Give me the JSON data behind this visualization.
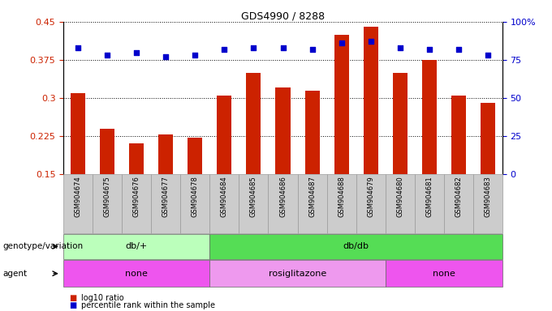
{
  "title": "GDS4990 / 8288",
  "samples": [
    "GSM904674",
    "GSM904675",
    "GSM904676",
    "GSM904677",
    "GSM904678",
    "GSM904684",
    "GSM904685",
    "GSM904686",
    "GSM904687",
    "GSM904688",
    "GSM904679",
    "GSM904680",
    "GSM904681",
    "GSM904682",
    "GSM904683"
  ],
  "log10_ratio": [
    0.31,
    0.24,
    0.21,
    0.228,
    0.222,
    0.305,
    0.35,
    0.32,
    0.315,
    0.425,
    0.44,
    0.35,
    0.375,
    0.305,
    0.29
  ],
  "percentile": [
    83,
    78,
    80,
    77,
    78,
    82,
    83,
    83,
    82,
    86,
    87,
    83,
    82,
    82,
    78
  ],
  "bar_color": "#cc2200",
  "dot_color": "#0000cc",
  "ylim_left": [
    0.15,
    0.45
  ],
  "ylim_right": [
    0,
    100
  ],
  "yticks_left": [
    0.15,
    0.225,
    0.3,
    0.375,
    0.45
  ],
  "yticks_right": [
    0,
    25,
    50,
    75,
    100
  ],
  "genotype_groups": [
    {
      "label": "db/+",
      "start": 0,
      "end": 5,
      "color": "#bbffbb"
    },
    {
      "label": "db/db",
      "start": 5,
      "end": 15,
      "color": "#55dd55"
    }
  ],
  "agent_groups": [
    {
      "label": "none",
      "start": 0,
      "end": 5,
      "color": "#ee55ee"
    },
    {
      "label": "rosiglitazone",
      "start": 5,
      "end": 11,
      "color": "#ee99ee"
    },
    {
      "label": "none",
      "start": 11,
      "end": 15,
      "color": "#ee55ee"
    }
  ],
  "legend_items": [
    {
      "label": "log10 ratio",
      "color": "#cc2200"
    },
    {
      "label": "percentile rank within the sample",
      "color": "#0000cc"
    }
  ],
  "bar_width": 0.5,
  "dot_size": 18,
  "label_box_color": "#cccccc",
  "label_box_edge": "#999999"
}
